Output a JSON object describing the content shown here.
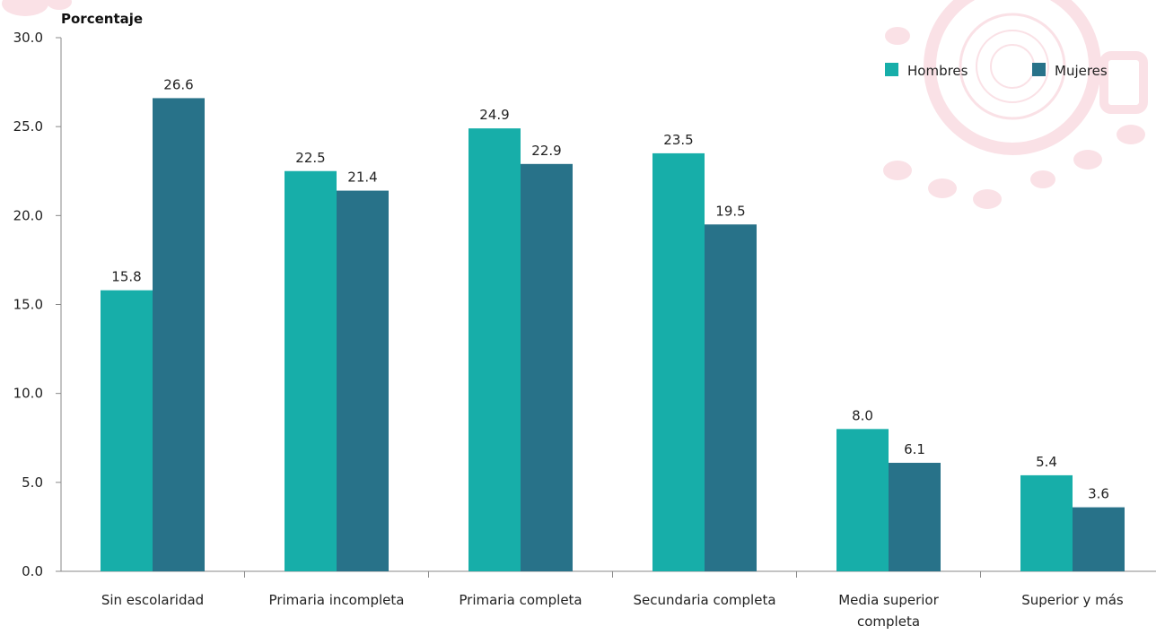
{
  "chart_data": {
    "type": "bar",
    "title": "",
    "xlabel": "",
    "ylabel": "Porcentaje",
    "ylim": [
      0,
      30
    ],
    "yticks": [
      "0.0",
      "5.0",
      "10.0",
      "15.0",
      "20.0",
      "25.0",
      "30.0"
    ],
    "categories": [
      [
        "Sin escolaridad"
      ],
      [
        "Primaria incompleta"
      ],
      [
        "Primaria completa"
      ],
      [
        "Secundaria completa"
      ],
      [
        "Media superior",
        "completa"
      ],
      [
        "Superior y más"
      ]
    ],
    "series": [
      {
        "name": "Hombres",
        "color": "#17AEA9",
        "values": [
          15.8,
          22.5,
          24.9,
          23.5,
          8.0,
          5.4
        ]
      },
      {
        "name": "Mujeres",
        "color": "#287289",
        "values": [
          26.6,
          21.4,
          22.9,
          19.5,
          6.1,
          3.6
        ]
      }
    ],
    "legend_position": "top-right",
    "grid": false,
    "decoration_color": "#F6C9D2"
  }
}
